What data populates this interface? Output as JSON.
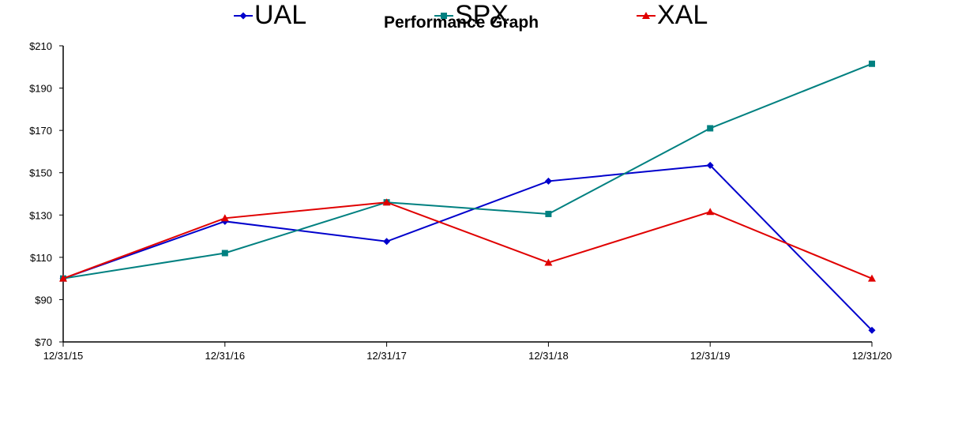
{
  "chart_data": {
    "type": "line",
    "title": "Performance Graph",
    "xlabel": "",
    "ylabel": "",
    "x": [
      "12/31/15",
      "12/31/16",
      "12/31/17",
      "12/31/18",
      "12/31/19",
      "12/31/20"
    ],
    "ylim": [
      70,
      210
    ],
    "yticks": [
      70,
      90,
      110,
      130,
      150,
      170,
      190,
      210
    ],
    "ytick_labels": [
      "$70",
      "$90",
      "$110",
      "$130",
      "$150",
      "$170",
      "$190",
      "$210"
    ],
    "grid": false,
    "legend_position": "bottom",
    "series": [
      {
        "name": "UAL",
        "color": "#0000CC",
        "marker": "diamond",
        "values": [
          100,
          127,
          117.5,
          146,
          153.5,
          75.5
        ]
      },
      {
        "name": "SPX",
        "color": "#008080",
        "marker": "square",
        "values": [
          100,
          112,
          136,
          130.5,
          171,
          201.5
        ]
      },
      {
        "name": "XAL",
        "color": "#E00000",
        "marker": "triangle",
        "values": [
          100,
          128.5,
          136,
          107.5,
          131.5,
          100
        ]
      }
    ]
  }
}
